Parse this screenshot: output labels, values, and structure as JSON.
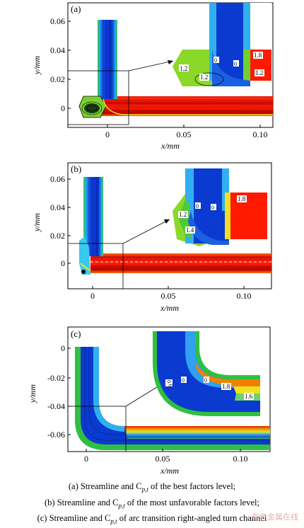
{
  "panels": [
    {
      "id": "a",
      "label": "(a)",
      "ylabel": "y/mm",
      "xlabel": "x/mm",
      "yticks": [
        "0.06",
        "0.04",
        "0.02",
        "0"
      ],
      "xticks": [
        "0",
        "0.05",
        "0.10"
      ],
      "inset_labels": [
        "1.2",
        "1.2",
        "1.8",
        "1.2",
        "0",
        "0"
      ]
    },
    {
      "id": "b",
      "label": "(b)",
      "ylabel": "y/mm",
      "xlabel": "x/mm",
      "yticks": [
        "0.06",
        "0.04",
        "0.02",
        "0"
      ],
      "xticks": [
        "0",
        "0.05",
        "0.10"
      ],
      "inset_labels": [
        "1.8",
        "1.2",
        "1.4",
        "0",
        "0"
      ]
    },
    {
      "id": "c",
      "label": "(c)",
      "ylabel": "y/mm",
      "xlabel": "x/mm",
      "yticks": [
        "0",
        "-0.02",
        "-0.04",
        "-0.06"
      ],
      "xticks": [
        "0",
        "0.05",
        "0.10"
      ],
      "inset_labels": [
        "0.6",
        "0",
        "0",
        "1.8",
        "1.6"
      ]
    }
  ],
  "caption": {
    "a": "(a) Streamline and C",
    "a_sub": "p,t",
    "a_rest": " of the best factors level;",
    "b": "(b) Streamline and C",
    "b_sub": "p,t",
    "b_rest": " of the most unfavorable factors level;",
    "c": "(c) Streamline and C",
    "c_sub": "p,t",
    "c_rest": " of arc transition right-angled turn channel"
  },
  "watermark": "有色金属在线"
}
